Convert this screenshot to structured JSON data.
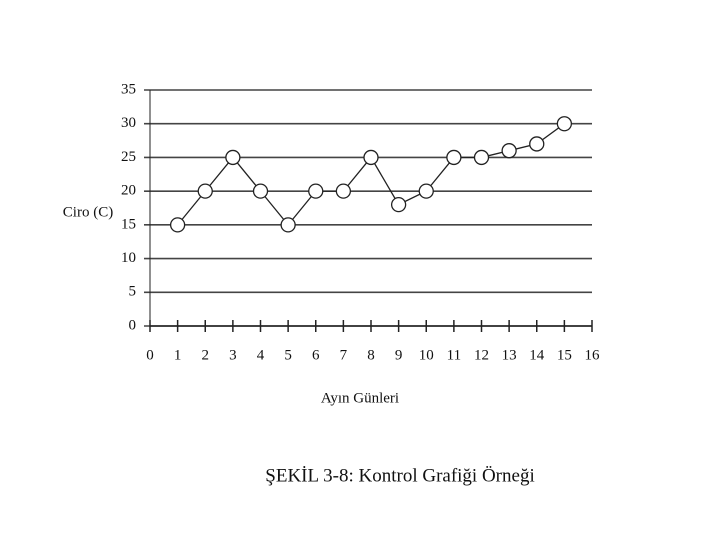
{
  "chart_data": {
    "type": "line",
    "x": [
      1,
      2,
      3,
      4,
      5,
      6,
      7,
      8,
      9,
      10,
      11,
      12,
      13,
      14,
      15
    ],
    "values": [
      15,
      20,
      25,
      20,
      15,
      20,
      20,
      25,
      18,
      20,
      25,
      25,
      26,
      27,
      30
    ],
    "color": "#222",
    "ylabel": "Ciro (C)",
    "xlabel": "Ayın Günleri",
    "caption": "ŞEKİL 3-8: Kontrol Grafiği Örneği",
    "xlim": [
      0,
      16
    ],
    "xticks": [
      0,
      1,
      2,
      3,
      4,
      5,
      6,
      7,
      8,
      9,
      10,
      11,
      12,
      13,
      14,
      15,
      16
    ],
    "ylim": [
      0,
      35
    ],
    "yticks": [
      0,
      5,
      10,
      15,
      20,
      25,
      30,
      35
    ],
    "grid": true
  }
}
